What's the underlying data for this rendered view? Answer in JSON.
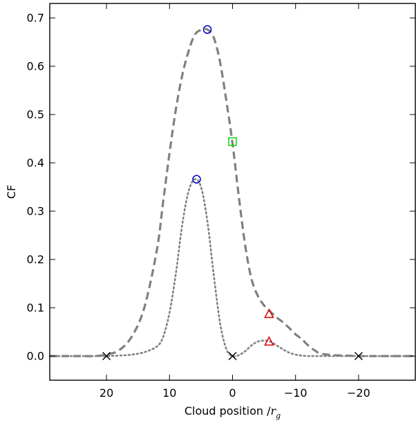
{
  "chart_data": {
    "type": "line",
    "title": "",
    "xlabel": "Cloud position /",
    "xlabel_symbol": "r",
    "xlabel_subscript": "g",
    "ylabel": "CF",
    "xlim": [
      29,
      -29
    ],
    "ylim": [
      -0.05,
      0.73
    ],
    "x_reversed": true,
    "grid": false,
    "xticks": [
      20,
      10,
      0,
      -10,
      -20
    ],
    "xtick_labels": [
      "20",
      "10",
      "0",
      "−10",
      "−20"
    ],
    "yticks": [
      0.0,
      0.1,
      0.2,
      0.3,
      0.4,
      0.5,
      0.6,
      0.7
    ],
    "ytick_labels": [
      "0.0",
      "0.1",
      "0.2",
      "0.3",
      "0.4",
      "0.5",
      "0.6",
      "0.7"
    ],
    "series": [
      {
        "style": "dashed",
        "color": "#808080",
        "x": [
          29,
          26,
          24,
          22,
          20,
          18,
          16,
          14,
          12,
          11,
          10,
          9,
          8,
          7,
          6,
          5,
          4,
          3,
          2,
          1,
          0,
          -1,
          -2,
          -3,
          -4,
          -5,
          -6,
          -7,
          -8,
          -9,
          -10,
          -11,
          -12,
          -13,
          -14,
          -16,
          -18,
          -20,
          -22,
          -24,
          -26,
          -29
        ],
        "values": [
          0,
          0,
          0,
          0,
          0.003,
          0.012,
          0.04,
          0.1,
          0.22,
          0.32,
          0.42,
          0.51,
          0.58,
          0.63,
          0.665,
          0.675,
          0.676,
          0.66,
          0.61,
          0.53,
          0.44,
          0.33,
          0.23,
          0.16,
          0.125,
          0.105,
          0.092,
          0.08,
          0.07,
          0.058,
          0.045,
          0.035,
          0.022,
          0.012,
          0.005,
          0.002,
          0.001,
          0,
          0,
          0,
          0,
          0
        ]
      },
      {
        "style": "dotted",
        "color": "#808080",
        "x": [
          29,
          26,
          24,
          22,
          20,
          18,
          16,
          14,
          12,
          11,
          10,
          9,
          8,
          7,
          6,
          5,
          4,
          3,
          2,
          1,
          0,
          -1,
          -2,
          -3,
          -4,
          -5,
          -6,
          -7,
          -8,
          -9,
          -10,
          -11,
          -12,
          -13,
          -14,
          -16,
          -18,
          -20,
          -22,
          -24,
          -26,
          -29
        ],
        "values": [
          0,
          0,
          0,
          0,
          0,
          0.001,
          0.003,
          0.008,
          0.02,
          0.04,
          0.09,
          0.17,
          0.27,
          0.34,
          0.366,
          0.35,
          0.28,
          0.17,
          0.07,
          0.015,
          0,
          0.002,
          0.01,
          0.022,
          0.03,
          0.032,
          0.03,
          0.022,
          0.014,
          0.007,
          0.003,
          0.001,
          0,
          0,
          0,
          0,
          0,
          0,
          0,
          0,
          0,
          0
        ]
      }
    ],
    "markers": [
      {
        "shape": "circle",
        "color": "#0000cc",
        "x": 4,
        "y": 0.676
      },
      {
        "shape": "circle",
        "color": "#0000cc",
        "x": 5.7,
        "y": 0.366
      },
      {
        "shape": "square",
        "color": "#00dd00",
        "x": 0,
        "y": 0.444
      },
      {
        "shape": "triangle",
        "color": "#dd0000",
        "x": -5.8,
        "y": 0.087
      },
      {
        "shape": "triangle",
        "color": "#dd0000",
        "x": -5.8,
        "y": 0.03
      },
      {
        "shape": "x",
        "color": "#000000",
        "x": 20,
        "y": 0
      },
      {
        "shape": "x",
        "color": "#000000",
        "x": 0,
        "y": 0
      },
      {
        "shape": "x",
        "color": "#000000",
        "x": -20,
        "y": 0
      }
    ]
  }
}
